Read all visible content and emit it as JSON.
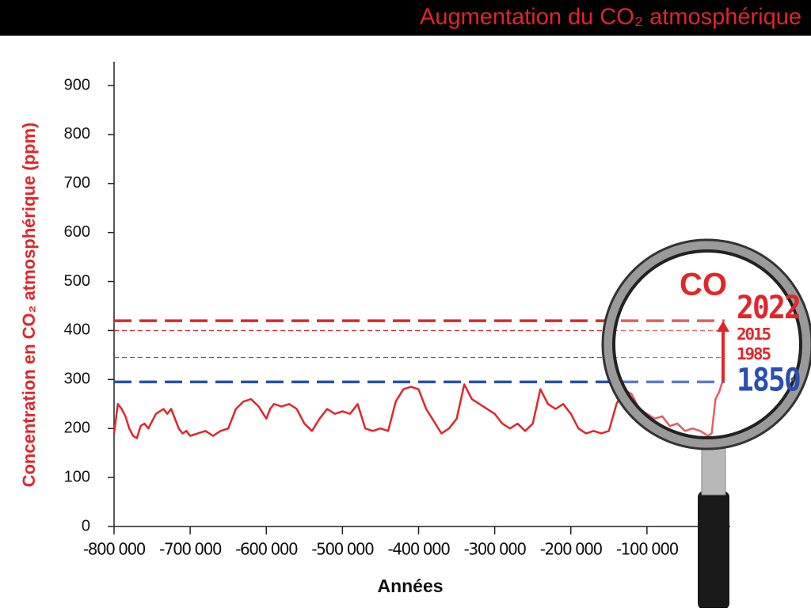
{
  "chart_data": {
    "type": "line",
    "title": "Augmentation du CO₂ atmosphérique",
    "ylabel": "Concentration en CO₂ atmosphérique (ppm)",
    "xlabel": "Années",
    "annotation": "CO",
    "ylim": [
      0,
      900
    ],
    "yticks": [
      0,
      100,
      200,
      300,
      400,
      500,
      600,
      700,
      800,
      900
    ],
    "xlim": [
      -800000,
      0
    ],
    "xticks": [
      {
        "value": -800000,
        "label": "-800 000"
      },
      {
        "value": -700000,
        "label": "-700 000"
      },
      {
        "value": -600000,
        "label": "-600 000"
      },
      {
        "value": -500000,
        "label": "-500 000"
      },
      {
        "value": -400000,
        "label": "-400 000"
      },
      {
        "value": -300000,
        "label": "-300 000"
      },
      {
        "value": -200000,
        "label": "-200 000"
      },
      {
        "value": -100000,
        "label": "-100 000"
      },
      0
    ],
    "series": [
      {
        "color": "#e0262a",
        "x": [
          -800000,
          -795000,
          -790000,
          -785000,
          -780000,
          -775000,
          -770000,
          -765000,
          -760000,
          -755000,
          -750000,
          -745000,
          -740000,
          -735000,
          -730000,
          -725000,
          -720000,
          -715000,
          -710000,
          -705000,
          -700000,
          -690000,
          -680000,
          -670000,
          -660000,
          -650000,
          -640000,
          -630000,
          -620000,
          -610000,
          -600000,
          -595000,
          -590000,
          -580000,
          -570000,
          -560000,
          -550000,
          -540000,
          -530000,
          -520000,
          -510000,
          -500000,
          -490000,
          -480000,
          -470000,
          -460000,
          -450000,
          -440000,
          -430000,
          -420000,
          -410000,
          -400000,
          -390000,
          -380000,
          -370000,
          -360000,
          -350000,
          -340000,
          -330000,
          -320000,
          -310000,
          -300000,
          -290000,
          -280000,
          -270000,
          -260000,
          -250000,
          -240000,
          -230000,
          -220000,
          -210000,
          -200000,
          -190000,
          -180000,
          -170000,
          -160000,
          -150000,
          -140000,
          -130000,
          -120000,
          -110000,
          -100000,
          -90000,
          -80000,
          -70000,
          -60000,
          -50000,
          -40000,
          -30000,
          -20000,
          -15000,
          -10000,
          -5000,
          0
        ],
        "values": [
          190,
          250,
          240,
          225,
          200,
          185,
          180,
          205,
          210,
          200,
          215,
          230,
          235,
          240,
          230,
          240,
          220,
          200,
          190,
          195,
          185,
          190,
          195,
          185,
          195,
          200,
          240,
          255,
          260,
          245,
          220,
          240,
          250,
          245,
          250,
          240,
          210,
          195,
          220,
          240,
          230,
          235,
          230,
          250,
          200,
          195,
          200,
          195,
          255,
          280,
          285,
          280,
          240,
          215,
          190,
          200,
          220,
          290,
          260,
          250,
          240,
          230,
          210,
          200,
          210,
          195,
          210,
          280,
          250,
          240,
          250,
          230,
          200,
          190,
          195,
          190,
          195,
          250,
          280,
          270,
          240,
          230,
          220,
          225,
          205,
          210,
          195,
          200,
          195,
          185,
          190,
          260,
          275,
          300
        ]
      }
    ],
    "reference_lines": [
      {
        "label": "2022",
        "value": 420,
        "color": "#e0262a"
      },
      {
        "label": "2015",
        "value": 400,
        "color": "#e0262a"
      },
      {
        "label": "1985",
        "value": 345,
        "color": "#e0262a"
      },
      {
        "label": "1850",
        "value": 295,
        "color": "#2a4fb0"
      }
    ]
  }
}
